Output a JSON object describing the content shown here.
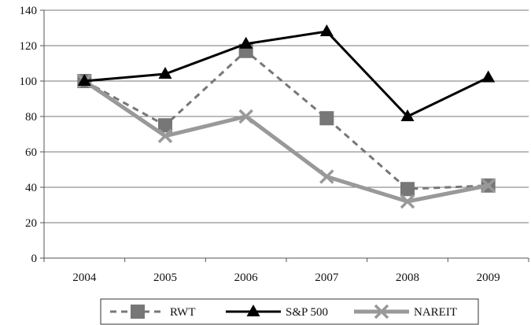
{
  "chart_data": {
    "type": "line",
    "title": "",
    "xlabel": "",
    "ylabel": "",
    "categories": [
      "2004",
      "2005",
      "2006",
      "2007",
      "2008",
      "2009"
    ],
    "ylim": [
      0,
      140
    ],
    "yticks": [
      0,
      20,
      40,
      60,
      80,
      100,
      120,
      140
    ],
    "grid": "horizontal",
    "legend_position": "bottom",
    "series": [
      {
        "name": "RWT",
        "values": [
          100,
          75,
          117,
          79,
          39,
          41
        ],
        "color": "#777777",
        "line_style": "dashed",
        "marker": "square"
      },
      {
        "name": "S&P 500",
        "values": [
          100,
          104,
          121,
          128,
          80,
          102
        ],
        "color": "#000000",
        "line_style": "solid",
        "marker": "triangle"
      },
      {
        "name": "NAREIT",
        "values": [
          100,
          69,
          80,
          46,
          32,
          41
        ],
        "color": "#999999",
        "line_style": "solid",
        "marker": "x"
      }
    ]
  }
}
